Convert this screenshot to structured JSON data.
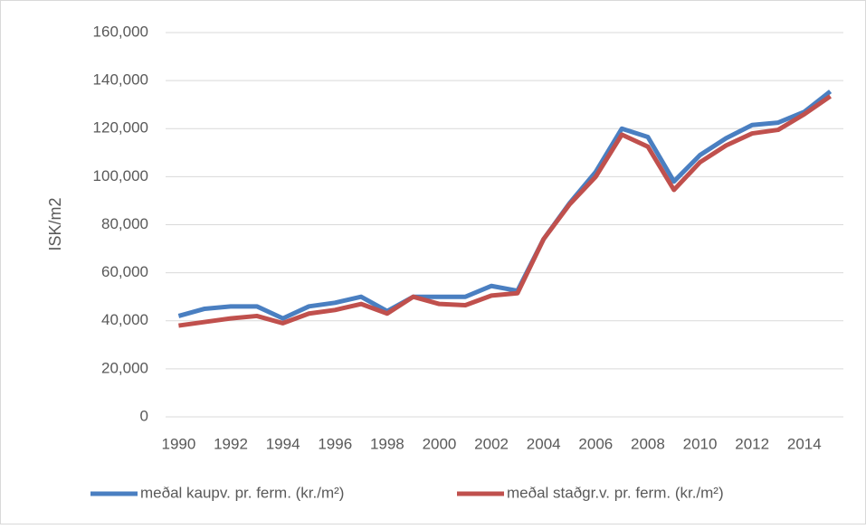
{
  "chart_data": {
    "type": "line",
    "y_label": "ISK/m2",
    "categories": [
      "1990",
      null,
      "1992",
      null,
      "1994",
      null,
      "1996",
      null,
      "1998",
      null,
      "2000",
      null,
      "2002",
      null,
      "2004",
      null,
      "2006",
      null,
      "2008",
      null,
      "2010",
      null,
      "2012",
      null,
      "2014",
      null
    ],
    "series": [
      {
        "name": "meðal kaupv. pr. ferm. (kr./m²)",
        "color": "#4a7fc1",
        "values": [
          42000,
          45000,
          46000,
          46000,
          41000,
          46000,
          47500,
          50000,
          44000,
          50000,
          50000,
          50000,
          54500,
          52500,
          74000,
          89000,
          102000,
          120000,
          116500,
          98000,
          109000,
          116000,
          121500,
          122500,
          127000,
          135500
        ]
      },
      {
        "name": "meðal staðgr.v. pr. ferm. (kr./m²)",
        "color": "#c0504d",
        "values": [
          38000,
          39500,
          41000,
          42000,
          39000,
          43000,
          44500,
          47000,
          43000,
          50000,
          47000,
          46500,
          50500,
          51500,
          74000,
          88500,
          100000,
          117500,
          112500,
          94500,
          106000,
          113000,
          118000,
          119500,
          126000,
          133500
        ]
      }
    ],
    "ylim": [
      0,
      160000
    ],
    "yticks": [
      0,
      {
        "value": 20000,
        "label": "20,000"
      },
      {
        "value": 40000,
        "label": "40,000"
      },
      {
        "value": 60000,
        "label": "60,000"
      },
      {
        "value": 80000,
        "label": "80,000"
      },
      {
        "value": 100000,
        "label": "100,000"
      },
      {
        "value": 120000,
        "label": "120,000"
      },
      {
        "value": 140000,
        "label": "140,000"
      },
      {
        "value": 160000,
        "label": "160,000"
      }
    ],
    "grid": true,
    "legend": "bottom"
  }
}
